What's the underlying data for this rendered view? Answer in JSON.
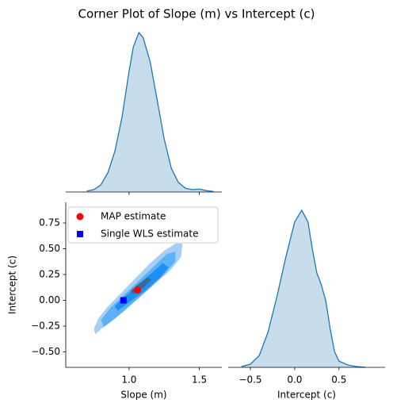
{
  "title": "Corner Plot of Slope (m) vs Intercept (c)",
  "chart_data": [
    {
      "type": "kde",
      "color": "#1f77b4",
      "x": [
        0.7,
        0.75,
        0.8,
        0.85,
        0.9,
        0.95,
        1.0,
        1.03,
        1.07,
        1.1,
        1.15,
        1.2,
        1.25,
        1.3,
        1.35,
        1.4,
        1.45,
        1.5,
        1.55,
        1.6
      ],
      "values": [
        0.02,
        0.05,
        0.15,
        0.4,
        0.85,
        1.55,
        2.5,
        3.0,
        3.3,
        3.2,
        2.7,
        1.9,
        1.1,
        0.5,
        0.2,
        0.08,
        0.05,
        0.06,
        0.03,
        0.01
      ],
      "xlim": [
        0.55,
        1.66
      ],
      "ylim": [
        0,
        3.4
      ],
      "xticks": [
        1,
        1.5
      ]
    },
    {
      "type": "kde2d",
      "xlabel": "Slope (m)",
      "ylabel": "Intercept (c)",
      "xlim": [
        0.55,
        1.66
      ],
      "ylim": [
        -0.65,
        0.95
      ],
      "xticks": [
        {
          "value": 1,
          "label": "1.0"
        },
        1.5
      ],
      "yticks": [
        {
          "value": -0.5,
          "label": "−0.50"
        },
        {
          "value": -0.25,
          "label": "−0.25"
        },
        {
          "value": 0,
          "label": "0.00"
        },
        0.25,
        {
          "value": 0.5,
          "label": "0.50"
        },
        0.75
      ],
      "contours": [
        {
          "color": "#a6cff5",
          "x": [
            0.76,
            0.8,
            0.9,
            1.0,
            1.1,
            1.2,
            1.3,
            1.37,
            1.38,
            1.33,
            1.25,
            1.15,
            1.05,
            0.95,
            0.85,
            0.78,
            0.75
          ],
          "y": [
            -0.33,
            -0.28,
            -0.18,
            -0.06,
            0.06,
            0.18,
            0.3,
            0.42,
            0.55,
            0.55,
            0.48,
            0.36,
            0.22,
            0.08,
            -0.06,
            -0.18,
            -0.28
          ]
        },
        {
          "color": "#5cb0f5",
          "x": [
            0.82,
            0.95,
            1.05,
            1.15,
            1.25,
            1.33,
            1.33,
            1.27,
            1.17,
            1.07,
            0.97,
            0.87,
            0.8
          ],
          "y": [
            -0.26,
            -0.12,
            0.0,
            0.12,
            0.25,
            0.38,
            0.47,
            0.45,
            0.32,
            0.19,
            0.06,
            -0.07,
            -0.19
          ]
        },
        {
          "color": "#1e8ef0",
          "x": [
            0.92,
            1.02,
            1.12,
            1.22,
            1.28,
            1.24,
            1.14,
            1.04,
            0.94,
            0.9
          ],
          "y": [
            -0.1,
            0.0,
            0.1,
            0.22,
            0.32,
            0.36,
            0.24,
            0.12,
            0.0,
            -0.06
          ]
        },
        {
          "color": "#3a6b96",
          "x": [
            1.03,
            1.1,
            1.16,
            1.13,
            1.06,
            1.01
          ],
          "y": [
            0.06,
            0.12,
            0.2,
            0.22,
            0.15,
            0.09
          ]
        }
      ],
      "series": [
        {
          "name": "MAP estimate",
          "color": "#ff0000",
          "marker": "circle",
          "x": [
            1.06
          ],
          "values": [
            0.1
          ]
        },
        {
          "name": "Single WLS estimate",
          "color": "#0000ff",
          "marker": "square",
          "x": [
            0.96
          ],
          "values": [
            0.0
          ]
        }
      ],
      "legend": "upper left"
    },
    {
      "type": "kde",
      "color": "#1f77b4",
      "xlabel": "Intercept (c)",
      "x": [
        -0.6,
        -0.5,
        -0.4,
        -0.3,
        -0.2,
        -0.1,
        0.0,
        0.08,
        0.15,
        0.2,
        0.25,
        0.3,
        0.35,
        0.4,
        0.45,
        0.5,
        0.6,
        0.7,
        0.8
      ],
      "values": [
        0.01,
        0.04,
        0.15,
        0.45,
        0.9,
        1.4,
        1.85,
        2.0,
        1.85,
        1.5,
        1.2,
        1.05,
        0.85,
        0.5,
        0.2,
        0.08,
        0.03,
        0.01,
        0.0
      ],
      "xlim": [
        -0.75,
        1.02
      ],
      "ylim": [
        0,
        2.1
      ],
      "xticks": [
        {
          "value": -0.5,
          "label": "−0.5"
        },
        {
          "value": 0,
          "label": "0.0"
        },
        0.5
      ]
    }
  ]
}
